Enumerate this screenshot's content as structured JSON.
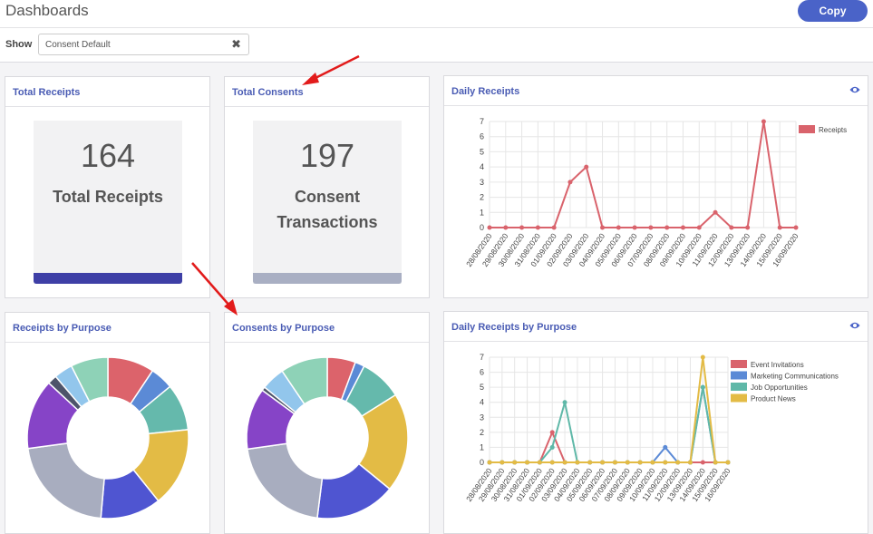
{
  "header": {
    "title": "Dashboards",
    "copy_label": "Copy"
  },
  "filter": {
    "show_label": "Show",
    "value": "Consent Default",
    "clear_icon": "close-icon"
  },
  "cards": {
    "total_receipts": {
      "title": "Total Receipts",
      "number": "164",
      "label": "Total Receipts",
      "bar_color": "#3e3fa6"
    },
    "total_consents": {
      "title": "Total Consents",
      "number": "197",
      "label_line1": "Consent",
      "label_line2": "Transactions",
      "bar_color": "#a9afc3"
    },
    "daily_receipts": {
      "title": "Daily Receipts",
      "icon": "eye-icon"
    },
    "receipts_by_purpose": {
      "title": "Receipts by Purpose"
    },
    "consents_by_purpose": {
      "title": "Consents by Purpose"
    },
    "daily_receipts_by_purpose": {
      "title": "Daily Receipts by Purpose",
      "icon": "eye-icon"
    }
  },
  "chart_data": [
    {
      "id": "daily_receipts",
      "type": "line",
      "x": [
        "28/08/2020",
        "29/08/2020",
        "30/08/2020",
        "31/08/2020",
        "01/09/2020",
        "02/09/2020",
        "03/09/2020",
        "04/09/2020",
        "05/09/2020",
        "06/09/2020",
        "07/09/2020",
        "08/09/2020",
        "09/09/2020",
        "10/09/2020",
        "11/09/2020",
        "12/09/2020",
        "13/09/2020",
        "14/09/2020",
        "15/09/2020",
        "16/09/2020"
      ],
      "series": [
        {
          "name": "Receipts",
          "color": "#d9636c",
          "values": [
            0,
            0,
            0,
            0,
            0,
            3,
            4,
            0,
            0,
            0,
            0,
            0,
            0,
            0,
            1,
            0,
            0,
            7,
            0,
            0
          ]
        }
      ],
      "ylim": [
        0,
        7
      ],
      "yticks": [
        0,
        1,
        2,
        3,
        4,
        5,
        6,
        7
      ],
      "legend": "top-right"
    },
    {
      "id": "daily_receipts_by_purpose",
      "type": "line",
      "x": [
        "28/08/2020",
        "29/08/2020",
        "30/08/2020",
        "31/08/2020",
        "01/09/2020",
        "02/09/2020",
        "03/09/2020",
        "04/09/2020",
        "05/09/2020",
        "06/09/2020",
        "07/09/2020",
        "08/09/2020",
        "09/09/2020",
        "10/09/2020",
        "11/09/2020",
        "12/09/2020",
        "13/09/2020",
        "14/09/2020",
        "15/09/2020",
        "16/09/2020"
      ],
      "series": [
        {
          "name": "Event Invitations",
          "color": "#d9636c",
          "values": [
            0,
            0,
            0,
            0,
            0,
            2,
            0,
            0,
            0,
            0,
            0,
            0,
            0,
            0,
            0,
            0,
            0,
            0,
            0,
            0
          ]
        },
        {
          "name": "Marketing Communications",
          "color": "#5b8ad6",
          "values": [
            0,
            0,
            0,
            0,
            0,
            0,
            0,
            0,
            0,
            0,
            0,
            0,
            0,
            0,
            1,
            0,
            0,
            5,
            0,
            0
          ]
        },
        {
          "name": "Job Opportunities",
          "color": "#5fb8a8",
          "values": [
            0,
            0,
            0,
            0,
            0,
            1,
            4,
            0,
            0,
            0,
            0,
            0,
            0,
            0,
            0,
            0,
            0,
            5,
            0,
            0
          ]
        },
        {
          "name": "Product News",
          "color": "#e3bb45",
          "values": [
            0,
            0,
            0,
            0,
            0,
            0,
            0,
            0,
            0,
            0,
            0,
            0,
            0,
            0,
            0,
            0,
            0,
            7,
            0,
            0
          ]
        }
      ],
      "ylim": [
        0,
        7
      ],
      "yticks": [
        0,
        1,
        2,
        3,
        4,
        5,
        6,
        7
      ],
      "legend": "top-right"
    },
    {
      "id": "receipts_by_purpose",
      "type": "pie",
      "slices": [
        {
          "value": 10,
          "color": "#dc636b"
        },
        {
          "value": 5,
          "color": "#5b8ad6"
        },
        {
          "value": 10,
          "color": "#65b9ac"
        },
        {
          "value": 17,
          "color": "#e3bb45"
        },
        {
          "value": 13,
          "color": "#4f55d1"
        },
        {
          "value": 23,
          "color": "#a8adbf"
        },
        {
          "value": 15,
          "color": "#8644c7"
        },
        {
          "value": 2,
          "color": "#4e546a"
        },
        {
          "value": 4,
          "color": "#92c6ec"
        },
        {
          "value": 8,
          "color": "#8ed2b7"
        }
      ]
    },
    {
      "id": "consents_by_purpose",
      "type": "pie",
      "slices": [
        {
          "value": 6,
          "color": "#dc636b"
        },
        {
          "value": 2,
          "color": "#5b8ad6"
        },
        {
          "value": 9,
          "color": "#65b9ac"
        },
        {
          "value": 21,
          "color": "#e3bb45"
        },
        {
          "value": 17,
          "color": "#4f55d1"
        },
        {
          "value": 22,
          "color": "#a8adbf"
        },
        {
          "value": 13,
          "color": "#8644c7"
        },
        {
          "value": 0.8,
          "color": "#4e546a"
        },
        {
          "value": 5,
          "color": "#92c6ec"
        },
        {
          "value": 10,
          "color": "#8ed2b7"
        }
      ]
    }
  ]
}
